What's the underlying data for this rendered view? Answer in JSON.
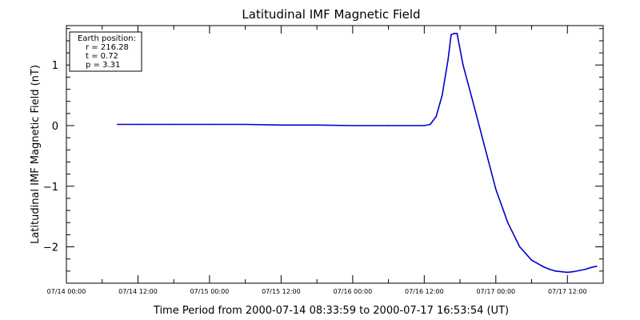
{
  "chart_data": {
    "type": "line",
    "title": "Latitudinal IMF Magnetic Field",
    "xlabel": "Time Period from 2000-07-14 08:33:59 to 2000-07-17 16:53:54 (UT)",
    "ylabel": "Latitudinal IMF Magnetic Field (nT)",
    "x_unit": "hours since 07/14 00:00",
    "xlim": [
      0,
      90
    ],
    "ylim": [
      -2.6,
      1.65
    ],
    "x_ticks": [
      {
        "value": 0,
        "label": "07/14 00:00"
      },
      {
        "value": 12,
        "label": "07/14 12:00"
      },
      {
        "value": 24,
        "label": "07/15 00:00"
      },
      {
        "value": 36,
        "label": "07/15 12:00"
      },
      {
        "value": 48,
        "label": "07/16 00:00"
      },
      {
        "value": 60,
        "label": "07/16 12:00"
      },
      {
        "value": 72,
        "label": "07/17 00:00"
      },
      {
        "value": 84,
        "label": "07/17 12:00"
      }
    ],
    "y_ticks": [
      {
        "value": 1,
        "label": "1"
      },
      {
        "value": 0,
        "label": "0"
      },
      {
        "value": -1,
        "label": "−1"
      },
      {
        "value": -2,
        "label": "−2"
      }
    ],
    "legend": {
      "title": "Earth position:",
      "lines": [
        "r = 216.28",
        "t = 0.72",
        "p = 3.31"
      ],
      "placement": "top-left"
    },
    "series": [
      {
        "color": "#0000cc",
        "x": [
          8.57,
          12,
          18,
          24,
          30,
          36,
          42,
          48,
          54,
          60,
          61,
          62,
          63,
          64,
          64.5,
          65,
          65.5,
          66.5,
          68,
          70,
          72,
          74,
          76,
          78,
          80,
          81,
          82,
          84,
          85,
          86,
          87,
          88,
          88.9
        ],
        "y": [
          0.02,
          0.02,
          0.02,
          0.02,
          0.02,
          0.01,
          0.01,
          0.0,
          0.0,
          0.0,
          0.02,
          0.15,
          0.5,
          1.1,
          1.5,
          1.52,
          1.52,
          1.0,
          0.45,
          -0.3,
          -1.05,
          -1.6,
          -2.0,
          -2.22,
          -2.33,
          -2.37,
          -2.4,
          -2.42,
          -2.41,
          -2.39,
          -2.37,
          -2.34,
          -2.32
        ]
      }
    ]
  }
}
